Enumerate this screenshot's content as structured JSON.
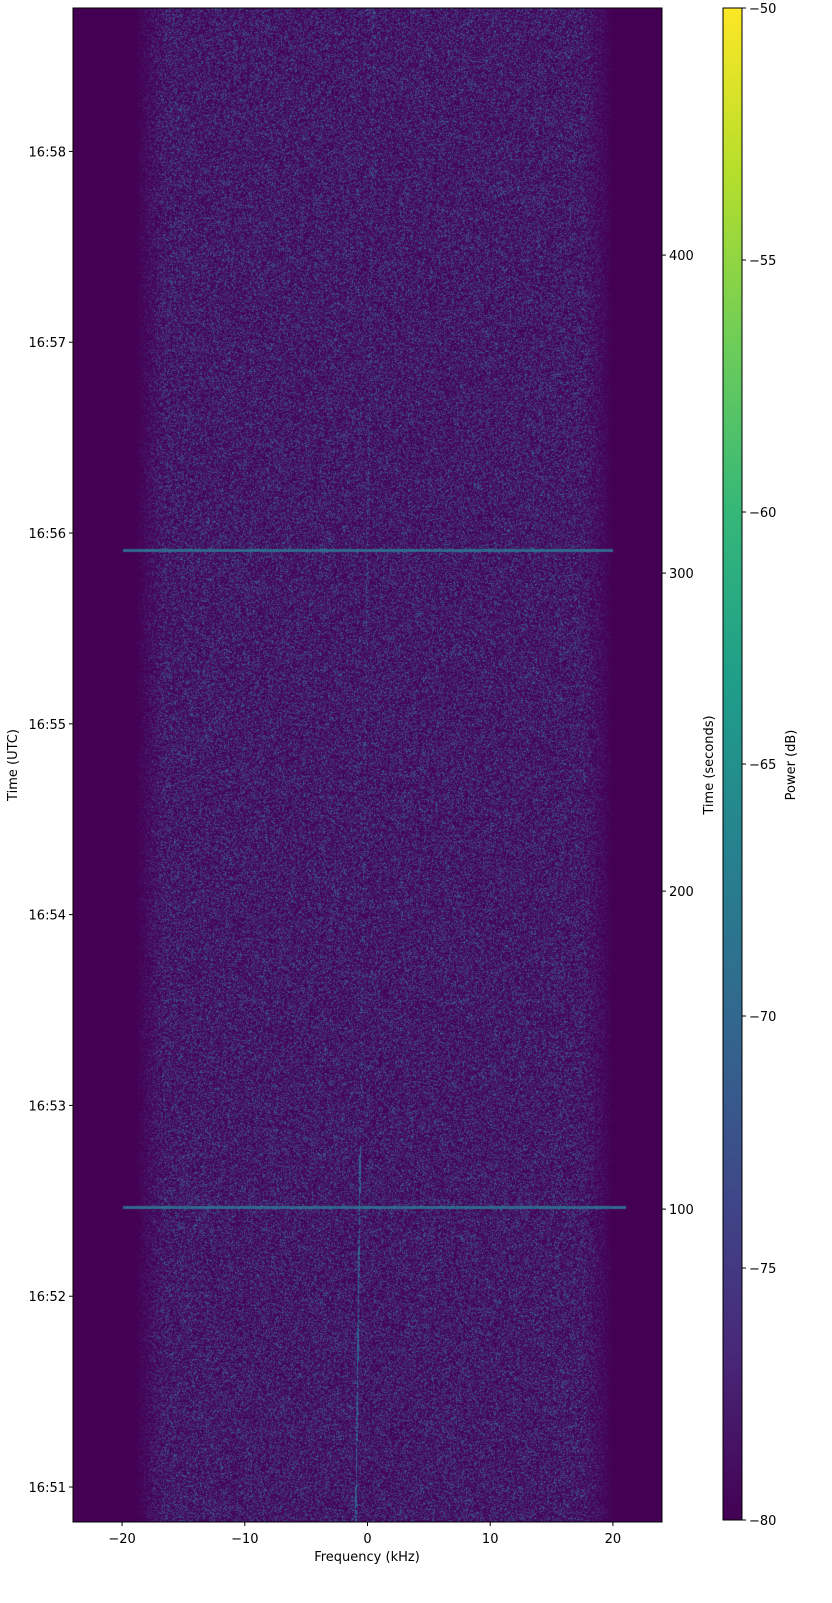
{
  "chart_data": {
    "type": "heatmap",
    "xlabel": "Frequency (kHz)",
    "ylabel_left": "Time (UTC)",
    "ylabel_right": "Time (seconds)",
    "colorbar_label": "Power (dB)",
    "colormap": "viridis",
    "xlim": [
      -24,
      24
    ],
    "ylim_seconds": [
      1.6,
      477.7
    ],
    "clim": [
      -80,
      -50
    ],
    "x_ticks": [
      -20,
      -10,
      0,
      10,
      20
    ],
    "x_tick_labels": [
      "−20",
      "−10",
      "0",
      "10",
      "20"
    ],
    "right_ticks": [
      100,
      200,
      300,
      400
    ],
    "utc_ticks": [
      {
        "label": "16:51",
        "t": 12.6
      },
      {
        "label": "16:52",
        "t": 72.6
      },
      {
        "label": "16:53",
        "t": 132.6
      },
      {
        "label": "16:54",
        "t": 192.6
      },
      {
        "label": "16:55",
        "t": 252.6
      },
      {
        "label": "16:56",
        "t": 312.6
      },
      {
        "label": "16:57",
        "t": 372.6
      },
      {
        "label": "16:58",
        "t": 432.6
      }
    ],
    "colorbar_ticks": [
      -80,
      -75,
      -70,
      -65,
      -60,
      -55,
      -50
    ],
    "colorbar_tick_labels": [
      "−80",
      "−75",
      "−70",
      "−65",
      "−60",
      "−55",
      "−50"
    ],
    "noise_band_khz": [
      -19,
      20
    ],
    "noise_floor_db": -78,
    "horizontal_events": [
      {
        "t": 307.2,
        "f_range": [
          -20,
          20
        ],
        "db": -68
      },
      {
        "t": 100.6,
        "f_range": [
          -20,
          21
        ],
        "db": -68
      }
    ],
    "carrier": {
      "f_start": -1,
      "f_end": 0.5,
      "db": -70
    }
  }
}
